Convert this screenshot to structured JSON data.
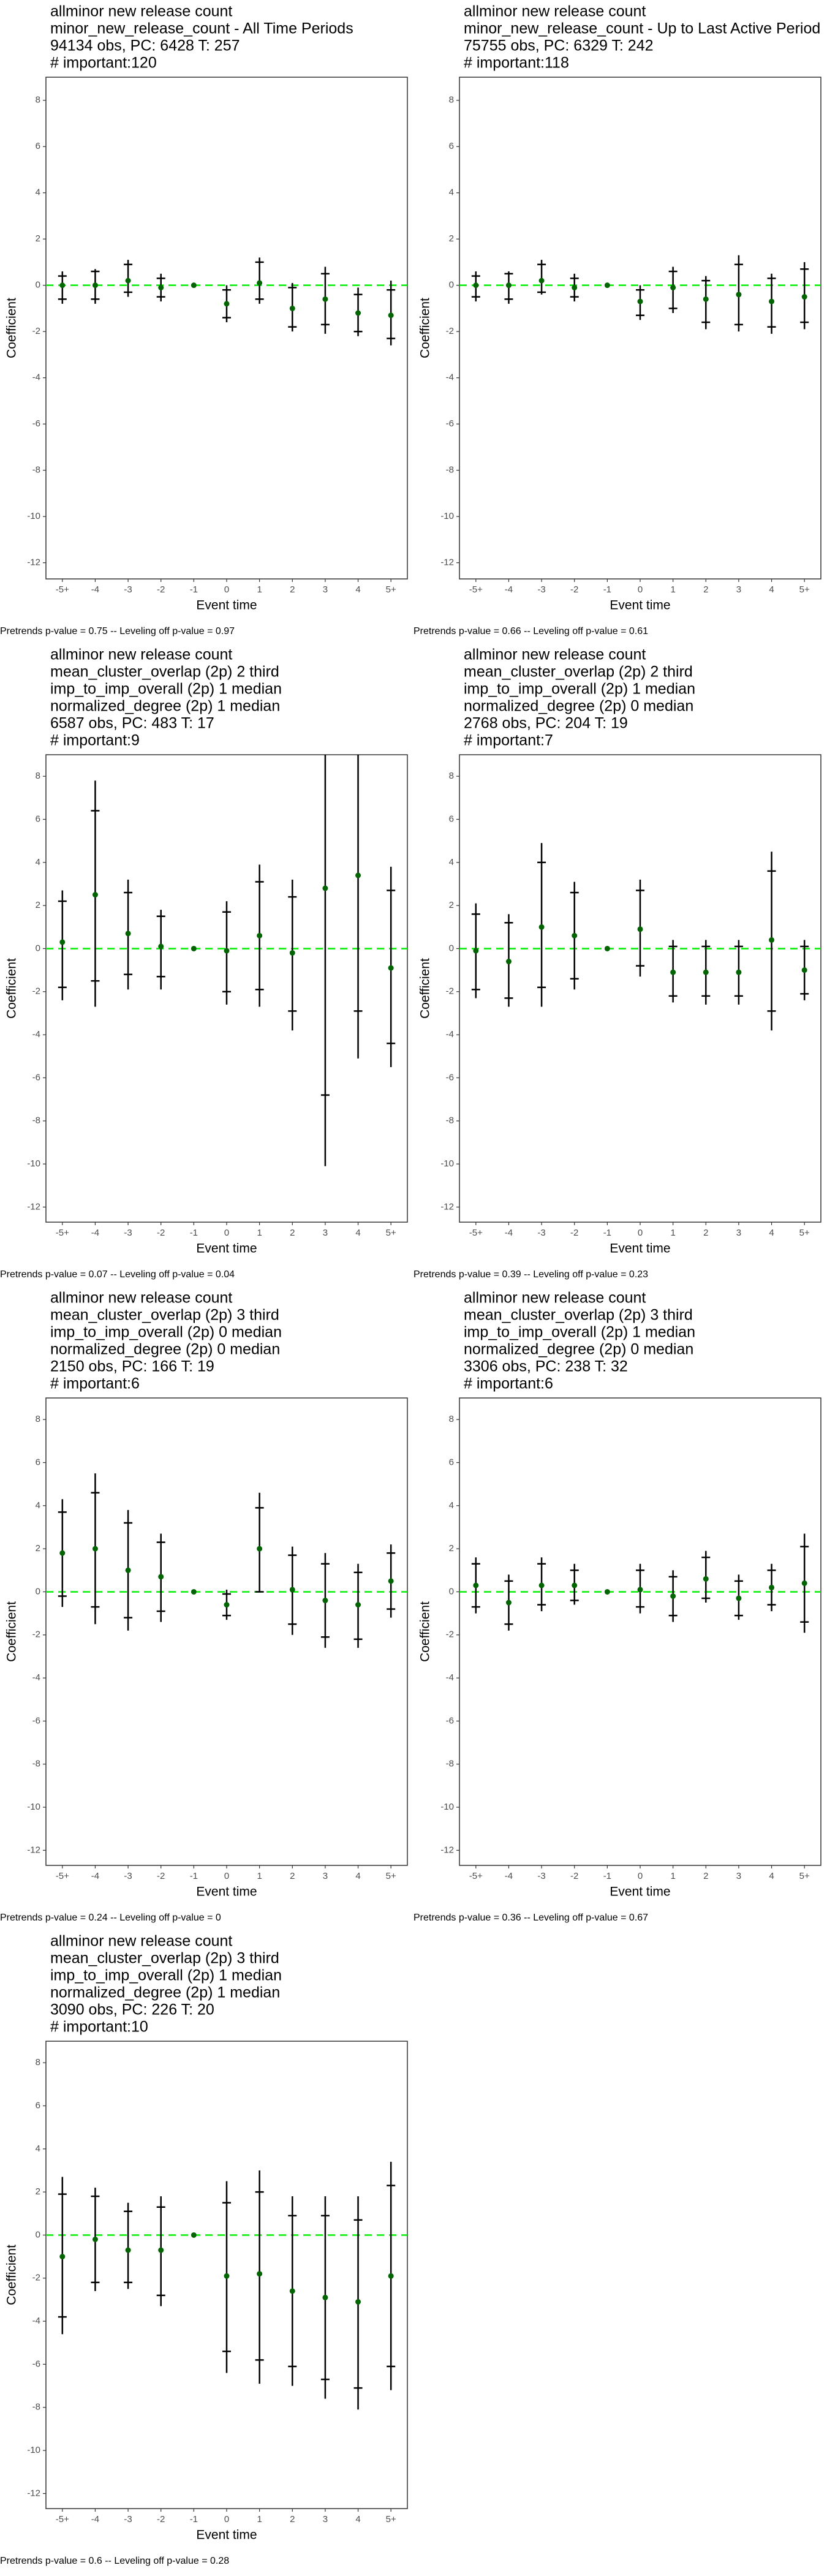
{
  "chart_data": [
    {
      "type": "errorbar",
      "title": [
        "allminor new release count",
        "minor_new_release_count - All Time Periods",
        "94134 obs, PC: 6428 T: 257",
        "# important:120"
      ],
      "xlabel": "Event time",
      "ylabel": "Coefficient",
      "footnote": "Pretrends p-value = 0.75 -- Leveling off p-value = 0.97",
      "categories": [
        "-5+",
        "-4",
        "-3",
        "-2",
        "-1",
        "0",
        "1",
        "2",
        "3",
        "4",
        "5+"
      ],
      "values": [
        0.0,
        0.0,
        0.2,
        -0.1,
        0,
        -0.8,
        0.1,
        -1.0,
        -0.6,
        -1.2,
        -1.3
      ],
      "ci_outer": [
        [
          -0.8,
          0.6
        ],
        [
          -0.8,
          0.7
        ],
        [
          -0.5,
          1.1
        ],
        [
          -0.7,
          0.5
        ],
        null,
        [
          -1.6,
          0.0
        ],
        [
          -0.8,
          1.2
        ],
        [
          -2.0,
          0.1
        ],
        [
          -2.1,
          0.8
        ],
        [
          -2.2,
          -0.1
        ],
        [
          -2.6,
          0.2
        ]
      ],
      "ci_inner": [
        [
          -0.6,
          0.4
        ],
        [
          -0.6,
          0.6
        ],
        [
          -0.3,
          0.9
        ],
        [
          -0.5,
          0.3
        ],
        null,
        [
          -1.4,
          -0.2
        ],
        [
          -0.6,
          1.0
        ],
        [
          -1.8,
          -0.1
        ],
        [
          -1.7,
          0.5
        ],
        [
          -2.0,
          -0.4
        ],
        [
          -2.3,
          -0.2
        ]
      ],
      "ylim": [
        -12.7,
        9
      ],
      "yticks": [
        -12,
        -10,
        -8,
        -6,
        -4,
        -2,
        0,
        2,
        4,
        6,
        8
      ],
      "hline": 0,
      "point_color": "#006400",
      "hline_color": "#00ee00"
    },
    {
      "type": "errorbar",
      "title": [
        "allminor new release count",
        "minor_new_release_count - Up to Last Active Period",
        "75755 obs, PC: 6329 T: 242",
        "# important:118"
      ],
      "xlabel": "Event time",
      "ylabel": "Coefficient",
      "footnote": "Pretrends p-value = 0.66 -- Leveling off p-value = 0.61",
      "categories": [
        "-5+",
        "-4",
        "-3",
        "-2",
        "-1",
        "0",
        "1",
        "2",
        "3",
        "4",
        "5+"
      ],
      "values": [
        0.0,
        0.0,
        0.2,
        -0.1,
        0,
        -0.7,
        -0.1,
        -0.6,
        -0.4,
        -0.7,
        -0.5
      ],
      "ci_outer": [
        [
          -0.7,
          0.6
        ],
        [
          -0.8,
          0.6
        ],
        [
          -0.4,
          1.1
        ],
        [
          -0.7,
          0.5
        ],
        null,
        [
          -1.5,
          0.0
        ],
        [
          -1.2,
          0.8
        ],
        [
          -1.9,
          0.4
        ],
        [
          -2.0,
          1.3
        ],
        [
          -2.1,
          0.5
        ],
        [
          -1.9,
          1.0
        ]
      ],
      "ci_inner": [
        [
          -0.5,
          0.4
        ],
        [
          -0.6,
          0.5
        ],
        [
          -0.3,
          0.9
        ],
        [
          -0.5,
          0.3
        ],
        null,
        [
          -1.3,
          -0.2
        ],
        [
          -1.0,
          0.6
        ],
        [
          -1.6,
          0.2
        ],
        [
          -1.7,
          0.9
        ],
        [
          -1.8,
          0.3
        ],
        [
          -1.6,
          0.7
        ]
      ],
      "ylim": [
        -12.7,
        9
      ],
      "yticks": [
        -12,
        -10,
        -8,
        -6,
        -4,
        -2,
        0,
        2,
        4,
        6,
        8
      ],
      "hline": 0,
      "point_color": "#006400",
      "hline_color": "#00ee00"
    },
    {
      "type": "errorbar",
      "title": [
        "allminor new release count",
        "mean_cluster_overlap (2p) 2 third",
        "imp_to_imp_overall (2p) 1 median",
        "normalized_degree (2p) 1 median",
        "6587 obs, PC: 483 T: 17",
        "# important:9"
      ],
      "xlabel": "Event time",
      "ylabel": "Coefficient",
      "footnote": "Pretrends p-value = 0.07 -- Leveling off p-value = 0.04",
      "categories": [
        "-5+",
        "-4",
        "-3",
        "-2",
        "-1",
        "0",
        "1",
        "2",
        "3",
        "4",
        "5+"
      ],
      "values": [
        0.3,
        2.5,
        0.7,
        0.1,
        0,
        -0.1,
        0.6,
        -0.2,
        2.8,
        3.4,
        -0.9
      ],
      "ci_outer": [
        [
          -2.4,
          2.7
        ],
        [
          -2.7,
          7.8
        ],
        [
          -1.9,
          3.2
        ],
        [
          -1.9,
          1.8
        ],
        null,
        [
          -2.6,
          2.2
        ],
        [
          -2.7,
          3.9
        ],
        [
          -3.8,
          3.2
        ],
        [
          -10.1,
          10
        ],
        [
          -5.1,
          10
        ],
        [
          -5.5,
          3.8
        ]
      ],
      "ci_inner": [
        [
          -1.8,
          2.2
        ],
        [
          -1.5,
          6.4
        ],
        [
          -1.2,
          2.6
        ],
        [
          -1.3,
          1.5
        ],
        null,
        [
          -2.0,
          1.7
        ],
        [
          -1.9,
          3.1
        ],
        [
          -2.9,
          2.4
        ],
        [
          -6.8,
          9.5
        ],
        [
          -2.9,
          9.5
        ],
        [
          -4.4,
          2.7
        ]
      ],
      "ylim": [
        -12.7,
        9
      ],
      "yticks": [
        -12,
        -10,
        -8,
        -6,
        -4,
        -2,
        0,
        2,
        4,
        6,
        8
      ],
      "hline": 0,
      "point_color": "#006400",
      "hline_color": "#00ee00"
    },
    {
      "type": "errorbar",
      "title": [
        "allminor new release count",
        "mean_cluster_overlap (2p) 2 third",
        "imp_to_imp_overall (2p) 1 median",
        "normalized_degree (2p) 0 median",
        "2768 obs, PC: 204 T: 19",
        "# important:7"
      ],
      "xlabel": "Event time",
      "ylabel": "Coefficient",
      "footnote": "Pretrends p-value = 0.39 -- Leveling off p-value = 0.23",
      "categories": [
        "-5+",
        "-4",
        "-3",
        "-2",
        "-1",
        "0",
        "1",
        "2",
        "3",
        "4",
        "5+"
      ],
      "values": [
        -0.1,
        -0.6,
        1.0,
        0.6,
        0,
        0.9,
        -1.1,
        -1.1,
        -1.1,
        0.4,
        -1.0
      ],
      "ci_outer": [
        [
          -2.3,
          2.1
        ],
        [
          -2.7,
          1.6
        ],
        [
          -2.7,
          4.9
        ],
        [
          -1.9,
          3.1
        ],
        null,
        [
          -1.3,
          3.2
        ],
        [
          -2.5,
          0.4
        ],
        [
          -2.6,
          0.4
        ],
        [
          -2.6,
          0.4
        ],
        [
          -3.8,
          4.5
        ],
        [
          -2.4,
          0.4
        ]
      ],
      "ci_inner": [
        [
          -1.9,
          1.6
        ],
        [
          -2.3,
          1.2
        ],
        [
          -1.8,
          4.0
        ],
        [
          -1.4,
          2.6
        ],
        null,
        [
          -0.8,
          2.7
        ],
        [
          -2.2,
          0.1
        ],
        [
          -2.2,
          0.1
        ],
        [
          -2.2,
          0.1
        ],
        [
          -2.9,
          3.6
        ],
        [
          -2.1,
          0.1
        ]
      ],
      "ylim": [
        -12.7,
        9
      ],
      "yticks": [
        -12,
        -10,
        -8,
        -6,
        -4,
        -2,
        0,
        2,
        4,
        6,
        8
      ],
      "hline": 0,
      "point_color": "#006400",
      "hline_color": "#00ee00"
    },
    {
      "type": "errorbar",
      "title": [
        "allminor new release count",
        "mean_cluster_overlap (2p) 3 third",
        "imp_to_imp_overall (2p) 0 median",
        "normalized_degree (2p) 0 median",
        "2150 obs, PC: 166 T: 19",
        "# important:6"
      ],
      "xlabel": "Event time",
      "ylabel": "Coefficient",
      "footnote": "Pretrends p-value = 0.24 -- Leveling off p-value = 0",
      "categories": [
        "-5+",
        "-4",
        "-3",
        "-2",
        "-1",
        "0",
        "1",
        "2",
        "3",
        "4",
        "5+"
      ],
      "values": [
        1.8,
        2.0,
        1.0,
        0.7,
        0,
        -0.6,
        2.0,
        0.1,
        -0.4,
        -0.6,
        0.5
      ],
      "ci_outer": [
        [
          -0.7,
          4.3
        ],
        [
          -1.5,
          5.5
        ],
        [
          -1.8,
          3.8
        ],
        [
          -1.4,
          2.7
        ],
        null,
        [
          -1.3,
          0.1
        ],
        [
          0.0,
          4.6
        ],
        [
          -2.0,
          2.1
        ],
        [
          -2.6,
          1.8
        ],
        [
          -2.6,
          1.3
        ],
        [
          -1.2,
          2.2
        ]
      ],
      "ci_inner": [
        [
          -0.2,
          3.7
        ],
        [
          -0.7,
          4.6
        ],
        [
          -1.2,
          3.2
        ],
        [
          -0.9,
          2.3
        ],
        null,
        [
          -1.1,
          -0.1
        ],
        [
          0.0,
          3.9
        ],
        [
          -1.5,
          1.7
        ],
        [
          -2.1,
          1.3
        ],
        [
          -2.2,
          0.9
        ],
        [
          -0.8,
          1.8
        ]
      ],
      "ylim": [
        -12.7,
        9
      ],
      "yticks": [
        -12,
        -10,
        -8,
        -6,
        -4,
        -2,
        0,
        2,
        4,
        6,
        8
      ],
      "hline": 0,
      "point_color": "#006400",
      "hline_color": "#00ee00"
    },
    {
      "type": "errorbar",
      "title": [
        "allminor new release count",
        "mean_cluster_overlap (2p) 3 third",
        "imp_to_imp_overall (2p) 1 median",
        "normalized_degree (2p) 0 median",
        "3306 obs, PC: 238 T: 32",
        "# important:6"
      ],
      "xlabel": "Event time",
      "ylabel": "Coefficient",
      "footnote": "Pretrends p-value = 0.36 -- Leveling off p-value = 0.67",
      "categories": [
        "-5+",
        "-4",
        "-3",
        "-2",
        "-1",
        "0",
        "1",
        "2",
        "3",
        "4",
        "5+"
      ],
      "values": [
        0.3,
        -0.5,
        0.3,
        0.3,
        0,
        0.1,
        -0.2,
        0.6,
        -0.3,
        0.2,
        0.4
      ],
      "ci_outer": [
        [
          -1.0,
          1.6
        ],
        [
          -1.8,
          0.8
        ],
        [
          -0.9,
          1.6
        ],
        [
          -0.6,
          1.3
        ],
        null,
        [
          -1.0,
          1.3
        ],
        [
          -1.4,
          1.0
        ],
        [
          -0.5,
          1.9
        ],
        [
          -1.3,
          0.8
        ],
        [
          -0.9,
          1.3
        ],
        [
          -1.9,
          2.7
        ]
      ],
      "ci_inner": [
        [
          -0.7,
          1.3
        ],
        [
          -1.5,
          0.5
        ],
        [
          -0.6,
          1.3
        ],
        [
          -0.4,
          1.0
        ],
        null,
        [
          -0.7,
          1.0
        ],
        [
          -1.1,
          0.7
        ],
        [
          -0.3,
          1.6
        ],
        [
          -1.1,
          0.5
        ],
        [
          -0.6,
          1.0
        ],
        [
          -1.4,
          2.1
        ]
      ],
      "ylim": [
        -12.7,
        9
      ],
      "yticks": [
        -12,
        -10,
        -8,
        -6,
        -4,
        -2,
        0,
        2,
        4,
        6,
        8
      ],
      "hline": 0,
      "point_color": "#006400",
      "hline_color": "#00ee00"
    },
    {
      "type": "errorbar",
      "title": [
        "allminor new release count",
        "mean_cluster_overlap (2p) 3 third",
        "imp_to_imp_overall (2p) 1 median",
        "normalized_degree (2p) 1 median",
        "3090 obs, PC: 226 T: 20",
        "# important:10"
      ],
      "xlabel": "Event time",
      "ylabel": "Coefficient",
      "footnote": "Pretrends p-value = 0.6 -- Leveling off p-value = 0.28",
      "categories": [
        "-5+",
        "-4",
        "-3",
        "-2",
        "-1",
        "0",
        "1",
        "2",
        "3",
        "4",
        "5+"
      ],
      "values": [
        -1.0,
        -0.2,
        -0.7,
        -0.7,
        0,
        -1.9,
        -1.8,
        -2.6,
        -2.9,
        -3.1,
        -1.9
      ],
      "ci_outer": [
        [
          -4.6,
          2.7
        ],
        [
          -2.6,
          2.2
        ],
        [
          -2.5,
          1.5
        ],
        [
          -3.3,
          1.8
        ],
        null,
        [
          -6.4,
          2.5
        ],
        [
          -6.9,
          3.0
        ],
        [
          -7.0,
          1.8
        ],
        [
          -7.6,
          1.8
        ],
        [
          -8.1,
          1.8
        ],
        [
          -7.2,
          3.4
        ]
      ],
      "ci_inner": [
        [
          -3.8,
          1.9
        ],
        [
          -2.2,
          1.8
        ],
        [
          -2.2,
          1.1
        ],
        [
          -2.8,
          1.3
        ],
        null,
        [
          -5.4,
          1.5
        ],
        [
          -5.8,
          2.0
        ],
        [
          -6.1,
          0.9
        ],
        [
          -6.7,
          0.9
        ],
        [
          -7.1,
          0.7
        ],
        [
          -6.1,
          2.3
        ]
      ],
      "ylim": [
        -12.7,
        9
      ],
      "yticks": [
        -12,
        -10,
        -8,
        -6,
        -4,
        -2,
        0,
        2,
        4,
        6,
        8
      ],
      "hline": 0,
      "point_color": "#006400",
      "hline_color": "#00ee00"
    }
  ]
}
